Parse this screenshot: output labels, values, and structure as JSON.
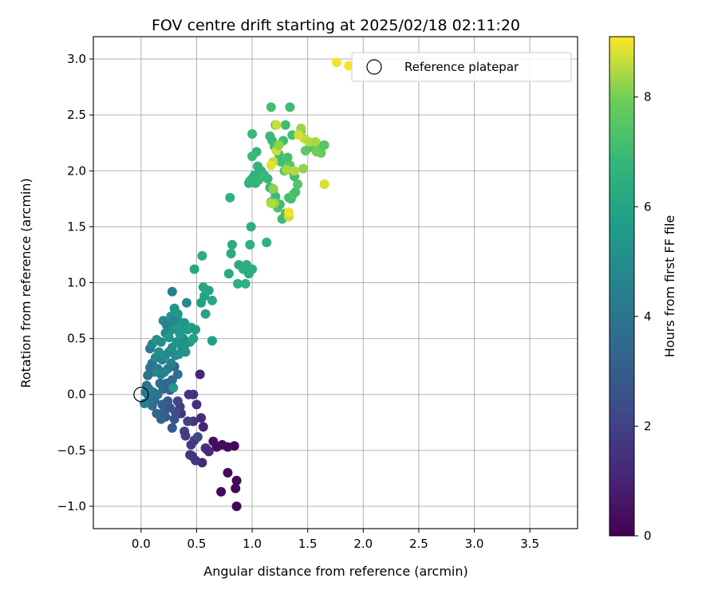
{
  "chart_data": {
    "type": "scatter",
    "title": "FOV centre drift starting at 2025/02/18 02:11:20",
    "xlabel": "Angular distance from reference (arcmin)",
    "ylabel": "Rotation from reference (arcmin)",
    "xlim": [
      -0.43,
      3.93
    ],
    "ylim": [
      -1.2,
      3.2
    ],
    "xticks": [
      0.0,
      0.5,
      1.0,
      1.5,
      2.0,
      2.5,
      3.0,
      3.5
    ],
    "xtick_labels": [
      "0.0",
      "0.5",
      "1.0",
      "1.5",
      "2.0",
      "2.5",
      "3.0",
      "3.5"
    ],
    "yticks": [
      -1.0,
      -0.5,
      0.0,
      0.5,
      1.0,
      1.5,
      2.0,
      2.5,
      3.0
    ],
    "ytick_labels": [
      "−1.0",
      "−0.5",
      "0.0",
      "0.5",
      "1.0",
      "1.5",
      "2.0",
      "2.5",
      "3.0"
    ],
    "grid": true,
    "colormap": "viridis",
    "colorbar": {
      "label": "Hours from first FF file",
      "range": [
        0,
        9.1
      ],
      "ticks": [
        0,
        2,
        4,
        6,
        8
      ],
      "tick_labels": [
        "0",
        "2",
        "4",
        "6",
        "8"
      ]
    },
    "legend": {
      "placement": "top-right",
      "entries": [
        {
          "label": "Reference platepar",
          "marker": "open-circle"
        }
      ]
    },
    "reference_point": {
      "x": 0.0,
      "y": 0.0
    },
    "points": [
      [
        0.86,
        -1.0,
        0.1
      ],
      [
        0.72,
        -0.87,
        0.2
      ],
      [
        0.85,
        -0.84,
        0.2
      ],
      [
        0.86,
        -0.77,
        0.2
      ],
      [
        0.78,
        -0.7,
        0.3
      ],
      [
        0.84,
        -0.46,
        0.1
      ],
      [
        0.78,
        -0.47,
        0.3
      ],
      [
        0.68,
        -0.47,
        0.4
      ],
      [
        0.65,
        -0.42,
        0.4
      ],
      [
        0.73,
        -0.45,
        0.3
      ],
      [
        0.59,
        -0.49,
        0.7
      ],
      [
        0.55,
        -0.61,
        1.1
      ],
      [
        0.58,
        -0.48,
        1.3
      ],
      [
        0.61,
        -0.51,
        1.2
      ],
      [
        0.56,
        -0.29,
        1.0
      ],
      [
        0.49,
        -0.59,
        1.5
      ],
      [
        0.46,
        -0.55,
        1.4
      ],
      [
        0.44,
        -0.54,
        1.6
      ],
      [
        0.48,
        -0.41,
        1.8
      ],
      [
        0.51,
        -0.38,
        2.2
      ],
      [
        0.45,
        -0.45,
        1.7
      ],
      [
        0.4,
        -0.37,
        1.9
      ],
      [
        0.39,
        -0.33,
        1.8
      ],
      [
        0.47,
        -0.24,
        1.5
      ],
      [
        0.54,
        -0.21,
        1.2
      ],
      [
        0.5,
        -0.09,
        1.4
      ],
      [
        0.47,
        0.0,
        1.3
      ],
      [
        0.43,
        0.0,
        1.6
      ],
      [
        0.53,
        0.18,
        1.1
      ],
      [
        0.42,
        -0.24,
        2.0
      ],
      [
        0.36,
        -0.17,
        1.6
      ],
      [
        0.35,
        -0.11,
        1.9
      ],
      [
        0.31,
        -0.16,
        2.4
      ],
      [
        0.3,
        -0.22,
        2.6
      ],
      [
        0.33,
        -0.06,
        2.1
      ],
      [
        0.28,
        -0.3,
        2.8
      ],
      [
        0.22,
        -0.2,
        2.9
      ],
      [
        0.18,
        -0.22,
        3.3
      ],
      [
        0.21,
        -0.15,
        3.1
      ],
      [
        0.14,
        -0.17,
        3.4
      ],
      [
        0.24,
        -0.06,
        3.0
      ],
      [
        0.26,
        -0.12,
        2.7
      ],
      [
        0.19,
        -0.09,
        3.2
      ],
      [
        0.12,
        -0.05,
        3.5
      ],
      [
        0.1,
        -0.1,
        3.6
      ],
      [
        0.08,
        -0.05,
        3.8
      ],
      [
        0.06,
        0.0,
        4.0
      ],
      [
        0.04,
        0.02,
        4.2
      ],
      [
        0.05,
        0.08,
        3.9
      ],
      [
        0.07,
        0.05,
        4.1
      ],
      [
        0.03,
        -0.08,
        4.4
      ],
      [
        0.11,
        0.02,
        4.3
      ],
      [
        0.15,
        0.0,
        4.0
      ],
      [
        0.17,
        0.1,
        3.7
      ],
      [
        0.2,
        0.05,
        3.4
      ],
      [
        0.23,
        0.1,
        3.5
      ],
      [
        0.26,
        0.04,
        3.2
      ],
      [
        0.28,
        0.13,
        3.6
      ],
      [
        0.3,
        0.25,
        3.3
      ],
      [
        0.33,
        0.18,
        3.7
      ],
      [
        0.29,
        0.06,
        5.5
      ],
      [
        0.27,
        0.28,
        4.5
      ],
      [
        0.24,
        0.23,
        4.2
      ],
      [
        0.21,
        0.2,
        4.6
      ],
      [
        0.18,
        0.18,
        4.4
      ],
      [
        0.15,
        0.23,
        4.3
      ],
      [
        0.12,
        0.2,
        4.7
      ],
      [
        0.1,
        0.28,
        4.2
      ],
      [
        0.08,
        0.24,
        4.0
      ],
      [
        0.06,
        0.17,
        3.9
      ],
      [
        0.13,
        0.33,
        4.8
      ],
      [
        0.16,
        0.38,
        4.9
      ],
      [
        0.19,
        0.31,
        4.6
      ],
      [
        0.22,
        0.35,
        5.0
      ],
      [
        0.25,
        0.38,
        4.8
      ],
      [
        0.28,
        0.42,
        5.1
      ],
      [
        0.31,
        0.35,
        4.7
      ],
      [
        0.34,
        0.36,
        5.2
      ],
      [
        0.37,
        0.42,
        5.0
      ],
      [
        0.4,
        0.38,
        5.3
      ],
      [
        0.08,
        0.41,
        4.1
      ],
      [
        0.1,
        0.45,
        4.6
      ],
      [
        0.14,
        0.49,
        5.2
      ],
      [
        0.18,
        0.47,
        5.0
      ],
      [
        0.22,
        0.55,
        4.8
      ],
      [
        0.25,
        0.51,
        5.4
      ],
      [
        0.28,
        0.58,
        5.1
      ],
      [
        0.3,
        0.62,
        5.5
      ],
      [
        0.33,
        0.67,
        5.2
      ],
      [
        0.36,
        0.6,
        5.6
      ],
      [
        0.39,
        0.64,
        5.3
      ],
      [
        0.42,
        0.58,
        5.5
      ],
      [
        0.45,
        0.6,
        5.8
      ],
      [
        0.49,
        0.58,
        5.6
      ],
      [
        0.44,
        0.47,
        5.7
      ],
      [
        0.47,
        0.5,
        5.9
      ],
      [
        0.4,
        0.45,
        5.4
      ],
      [
        0.38,
        0.5,
        5.0
      ],
      [
        0.35,
        0.54,
        5.6
      ],
      [
        0.32,
        0.47,
        5.3
      ],
      [
        0.27,
        0.7,
        5.2
      ],
      [
        0.3,
        0.77,
        5.3
      ],
      [
        0.33,
        0.72,
        5.4
      ],
      [
        0.29,
        0.66,
        4.8
      ],
      [
        0.2,
        0.66,
        4.9
      ],
      [
        0.23,
        0.62,
        4.6
      ],
      [
        0.28,
        0.92,
        4.5
      ],
      [
        0.41,
        0.82,
        4.9
      ],
      [
        0.54,
        0.82,
        5.8
      ],
      [
        0.57,
        0.88,
        5.9
      ],
      [
        0.61,
        0.93,
        6.0
      ],
      [
        0.56,
        0.96,
        6.1
      ],
      [
        0.64,
        0.84,
        6.1
      ],
      [
        0.58,
        0.72,
        6.0
      ],
      [
        0.48,
        1.12,
        6.1
      ],
      [
        0.55,
        1.24,
        6.3
      ],
      [
        0.64,
        0.48,
        5.8
      ],
      [
        0.81,
        1.26,
        6.2
      ],
      [
        0.82,
        1.34,
        6.3
      ],
      [
        0.79,
        1.08,
        6.2
      ],
      [
        0.87,
        0.99,
        6.4
      ],
      [
        0.88,
        1.16,
        6.3
      ],
      [
        0.92,
        1.12,
        6.4
      ],
      [
        0.95,
        1.16,
        6.4
      ],
      [
        0.94,
        0.99,
        6.5
      ],
      [
        0.97,
        1.08,
        6.3
      ],
      [
        1.0,
        1.12,
        6.4
      ],
      [
        0.98,
        1.34,
        6.5
      ],
      [
        0.99,
        1.5,
        6.4
      ],
      [
        1.13,
        1.36,
        6.6
      ],
      [
        0.8,
        1.76,
        6.5
      ],
      [
        0.97,
        1.89,
        6.6
      ],
      [
        1.0,
        1.93,
        6.7
      ],
      [
        1.02,
        1.96,
        6.5
      ],
      [
        1.03,
        1.89,
        6.6
      ],
      [
        1.06,
        1.92,
        6.8
      ],
      [
        1.05,
        2.04,
        6.7
      ],
      [
        1.08,
        2.0,
        6.6
      ],
      [
        1.11,
        1.96,
        6.9
      ],
      [
        1.14,
        1.93,
        6.8
      ],
      [
        1.16,
        1.85,
        7.0
      ],
      [
        1.17,
        1.72,
        7.1
      ],
      [
        1.19,
        1.83,
        7.2
      ],
      [
        1.21,
        1.77,
        7.0
      ],
      [
        1.23,
        1.67,
        7.3
      ],
      [
        1.25,
        1.7,
        7.1
      ],
      [
        1.27,
        1.57,
        7.0
      ],
      [
        1.3,
        1.62,
        7.2
      ],
      [
        1.33,
        1.76,
        7.3
      ],
      [
        1.35,
        1.75,
        7.1
      ],
      [
        1.37,
        1.79,
        7.4
      ],
      [
        1.39,
        1.81,
        7.2
      ],
      [
        1.41,
        1.88,
        7.4
      ],
      [
        1.38,
        1.95,
        7.1
      ],
      [
        1.36,
        2.0,
        7.3
      ],
      [
        1.34,
        2.05,
        7.5
      ],
      [
        1.32,
        2.12,
        7.2
      ],
      [
        1.29,
        2.0,
        7.4
      ],
      [
        1.26,
        2.08,
        7.1
      ],
      [
        1.24,
        2.15,
        7.0
      ],
      [
        1.22,
        2.18,
        7.3
      ],
      [
        1.2,
        2.22,
        7.2
      ],
      [
        1.18,
        2.27,
        7.0
      ],
      [
        1.16,
        2.31,
        6.9
      ],
      [
        1.28,
        2.27,
        7.1
      ],
      [
        1.3,
        2.41,
        7.0
      ],
      [
        1.21,
        2.41,
        7.3
      ],
      [
        1.17,
        2.57,
        7.1
      ],
      [
        1.34,
        2.57,
        7.0
      ],
      [
        1.0,
        2.33,
        6.9
      ],
      [
        1.04,
        2.17,
        6.8
      ],
      [
        1.0,
        2.13,
        6.9
      ],
      [
        0.98,
        1.91,
        6.7
      ],
      [
        1.36,
        2.32,
        7.2
      ],
      [
        1.44,
        2.36,
        7.4
      ],
      [
        1.48,
        2.18,
        7.6
      ],
      [
        1.52,
        2.21,
        7.5
      ],
      [
        1.55,
        2.25,
        7.7
      ],
      [
        1.59,
        2.23,
        7.6
      ],
      [
        1.62,
        2.16,
        7.8
      ],
      [
        1.65,
        2.23,
        7.5
      ],
      [
        1.58,
        2.17,
        7.9
      ],
      [
        1.46,
        2.02,
        8.2
      ],
      [
        1.44,
        2.38,
        8.3
      ],
      [
        1.47,
        2.29,
        8.6
      ],
      [
        1.51,
        2.26,
        8.5
      ],
      [
        1.57,
        2.26,
        8.4
      ],
      [
        1.42,
        2.32,
        8.8
      ],
      [
        1.22,
        2.41,
        8.7
      ],
      [
        1.22,
        2.18,
        8.7
      ],
      [
        1.24,
        2.23,
        8.2
      ],
      [
        1.19,
        2.08,
        8.6
      ],
      [
        1.17,
        2.05,
        8.9
      ],
      [
        1.19,
        1.84,
        8.2
      ],
      [
        1.2,
        1.71,
        8.3
      ],
      [
        1.17,
        1.71,
        8.5
      ],
      [
        1.33,
        1.59,
        8.7
      ],
      [
        1.33,
        1.63,
        9.0
      ],
      [
        1.31,
        2.01,
        8.4
      ],
      [
        1.38,
        2.0,
        8.5
      ],
      [
        1.65,
        1.88,
        8.8
      ],
      [
        1.76,
        2.97,
        9.0
      ],
      [
        1.87,
        2.94,
        9.0
      ]
    ]
  }
}
